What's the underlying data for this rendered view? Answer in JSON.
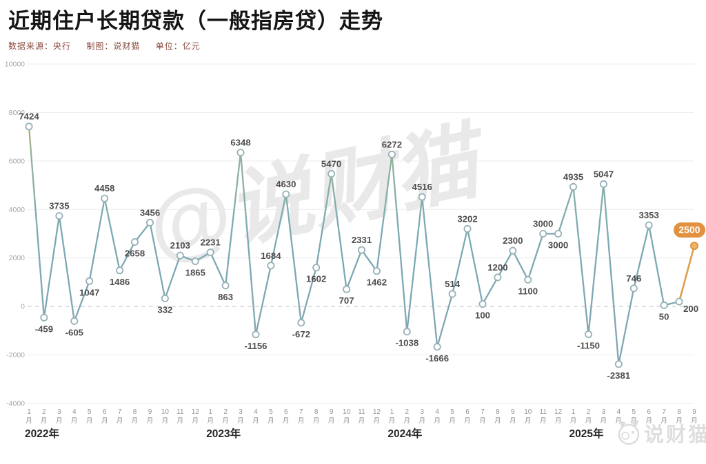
{
  "header": {
    "title": "近期住户长期贷款（一般指房贷）走势",
    "source_label": "数据来源：央行",
    "credit_label": "制图：说财猫",
    "unit_label": "单位：亿元"
  },
  "watermark": {
    "center": "@说财猫",
    "corner": "说财猫"
  },
  "colors": {
    "accent_orange": "#e2923e",
    "line_orange_top": "#d79d41",
    "line_teal": "#93b29d",
    "line_blue": "#7aa9b4",
    "marker_ring": "#96b0b7",
    "subtitle_red": "#8a4a3e",
    "grid_gray": "#ebebeb",
    "zero_line_gray": "#c4c7c9",
    "value_label_gray": "#4d4d4d",
    "axis_gray": "#909090"
  },
  "chart_data": {
    "type": "line",
    "title": "近期住户长期贷款（一般指房贷）走势",
    "unit": "亿元",
    "ylim": [
      -4000,
      10000
    ],
    "y_ticks": [
      10000,
      8000,
      6000,
      4000,
      2000,
      0,
      -2000,
      -4000
    ],
    "grid": "horizontal",
    "zero_line": "dashed",
    "x_month_suffix": "月",
    "years": [
      {
        "label": "2022年",
        "months": [
          1,
          2,
          3,
          4,
          5,
          6,
          7,
          8,
          9,
          10,
          11,
          12
        ],
        "values": [
          7424,
          -459,
          3735,
          -605,
          1047,
          4458,
          1486,
          2658,
          3456,
          332,
          2103,
          1865
        ],
        "label_sides": [
          "above",
          "below",
          "above",
          "below",
          "below",
          "above",
          "below",
          "below",
          "above",
          "below",
          "above",
          "below"
        ]
      },
      {
        "label": "2023年",
        "months": [
          1,
          2,
          3,
          4,
          5,
          6,
          7,
          8,
          9,
          10,
          11,
          12
        ],
        "values": [
          2231,
          863,
          6348,
          -1156,
          1684,
          4630,
          -672,
          1602,
          5470,
          707,
          2331,
          1462
        ],
        "label_sides": [
          "above",
          "below",
          "above",
          "below",
          "above",
          "above",
          "below",
          "below",
          "above",
          "below",
          "above",
          "below"
        ]
      },
      {
        "label": "2024年",
        "months": [
          1,
          2,
          3,
          4,
          5,
          6,
          7,
          8,
          9,
          10,
          11,
          12
        ],
        "values": [
          6272,
          -1038,
          4516,
          -1666,
          514,
          3202,
          100,
          1200,
          2300,
          1100,
          3000,
          3000
        ],
        "label_sides": [
          "above",
          "below",
          "above",
          "below",
          "above",
          "above",
          "below",
          "above",
          "above",
          "below",
          "above",
          "below"
        ]
      },
      {
        "label": "2025年",
        "months": [
          1,
          2,
          3,
          4,
          5,
          6,
          7,
          8,
          9
        ],
        "values": [
          4935,
          -1150,
          5047,
          -2381,
          746,
          3353,
          50,
          200,
          2500
        ],
        "label_sides": [
          "above",
          "below",
          "above",
          "below",
          "above",
          "above",
          "below",
          "below",
          "above"
        ]
      }
    ],
    "label_offsets": {
      "43": [
        17,
        -6
      ]
    },
    "highlight": {
      "year": "2025年",
      "month": 9,
      "value": 2500,
      "badge_color": "#e2923e",
      "badge_text_color": "#ffffff",
      "segment_color": "#dfa04e"
    },
    "legend": "none"
  }
}
